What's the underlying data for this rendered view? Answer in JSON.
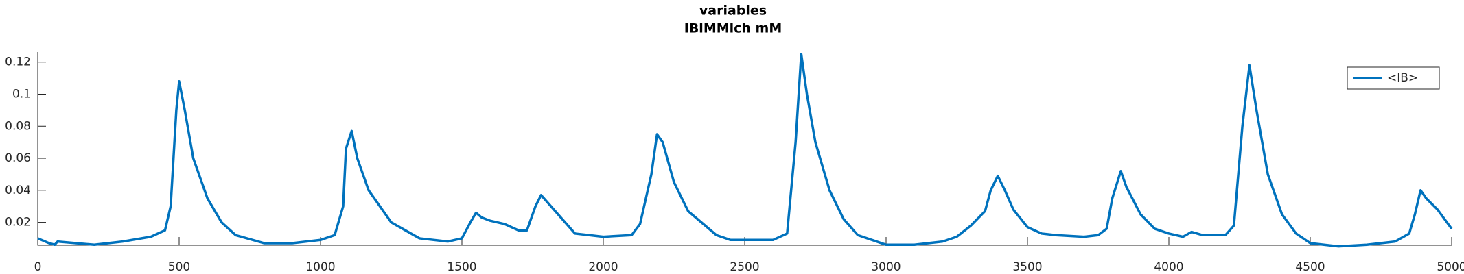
{
  "chart_data": {
    "type": "line",
    "title": "variables",
    "subtitle": "IBiMMich mM",
    "x": [
      0,
      40,
      60,
      70,
      200,
      300,
      400,
      450,
      470,
      490,
      500,
      520,
      550,
      600,
      650,
      700,
      800,
      900,
      1000,
      1050,
      1080,
      1090,
      1110,
      1130,
      1170,
      1250,
      1350,
      1450,
      1500,
      1530,
      1550,
      1570,
      1600,
      1650,
      1700,
      1730,
      1760,
      1780,
      1810,
      1850,
      1900,
      1950,
      2000,
      2100,
      2130,
      2170,
      2190,
      2210,
      2250,
      2300,
      2400,
      2450,
      2500,
      2600,
      2650,
      2680,
      2700,
      2720,
      2750,
      2800,
      2850,
      2900,
      3000,
      3100,
      3200,
      3250,
      3300,
      3350,
      3370,
      3395,
      3420,
      3450,
      3500,
      3550,
      3600,
      3700,
      3750,
      3780,
      3800,
      3830,
      3850,
      3900,
      3950,
      4000,
      4050,
      4080,
      4120,
      4200,
      4230,
      4260,
      4285,
      4310,
      4350,
      4400,
      4450,
      4500,
      4600,
      4700,
      4800,
      4850,
      4870,
      4890,
      4910,
      4950,
      5000
    ],
    "series": [
      {
        "name": "<IB>",
        "color": "#0072bd",
        "values": [
          0.01,
          0.007,
          0.006,
          0.008,
          0.006,
          0.008,
          0.011,
          0.015,
          0.03,
          0.09,
          0.108,
          0.09,
          0.06,
          0.035,
          0.02,
          0.012,
          0.007,
          0.007,
          0.009,
          0.012,
          0.03,
          0.066,
          0.077,
          0.06,
          0.04,
          0.02,
          0.01,
          0.008,
          0.01,
          0.02,
          0.026,
          0.023,
          0.021,
          0.019,
          0.015,
          0.015,
          0.03,
          0.037,
          0.031,
          0.023,
          0.013,
          0.012,
          0.011,
          0.012,
          0.019,
          0.05,
          0.075,
          0.07,
          0.045,
          0.027,
          0.012,
          0.009,
          0.009,
          0.009,
          0.013,
          0.07,
          0.125,
          0.1,
          0.07,
          0.04,
          0.022,
          0.012,
          0.006,
          0.006,
          0.008,
          0.011,
          0.018,
          0.027,
          0.04,
          0.049,
          0.04,
          0.028,
          0.017,
          0.013,
          0.012,
          0.011,
          0.012,
          0.016,
          0.035,
          0.052,
          0.042,
          0.025,
          0.016,
          0.013,
          0.011,
          0.014,
          0.012,
          0.012,
          0.018,
          0.08,
          0.118,
          0.09,
          0.05,
          0.025,
          0.013,
          0.007,
          0.005,
          0.006,
          0.008,
          0.013,
          0.025,
          0.04,
          0.035,
          0.028,
          0.016
        ]
      }
    ],
    "xlim": [
      0,
      5000
    ],
    "xticks": [
      0,
      500,
      1000,
      1500,
      2000,
      2500,
      3000,
      3500,
      4000,
      4500,
      5000
    ],
    "ylim": [
      0.0057,
      0.1263
    ],
    "yticks": [
      0.02,
      0.04,
      0.06,
      0.08,
      0.1,
      0.12
    ],
    "legend": "northeast"
  }
}
